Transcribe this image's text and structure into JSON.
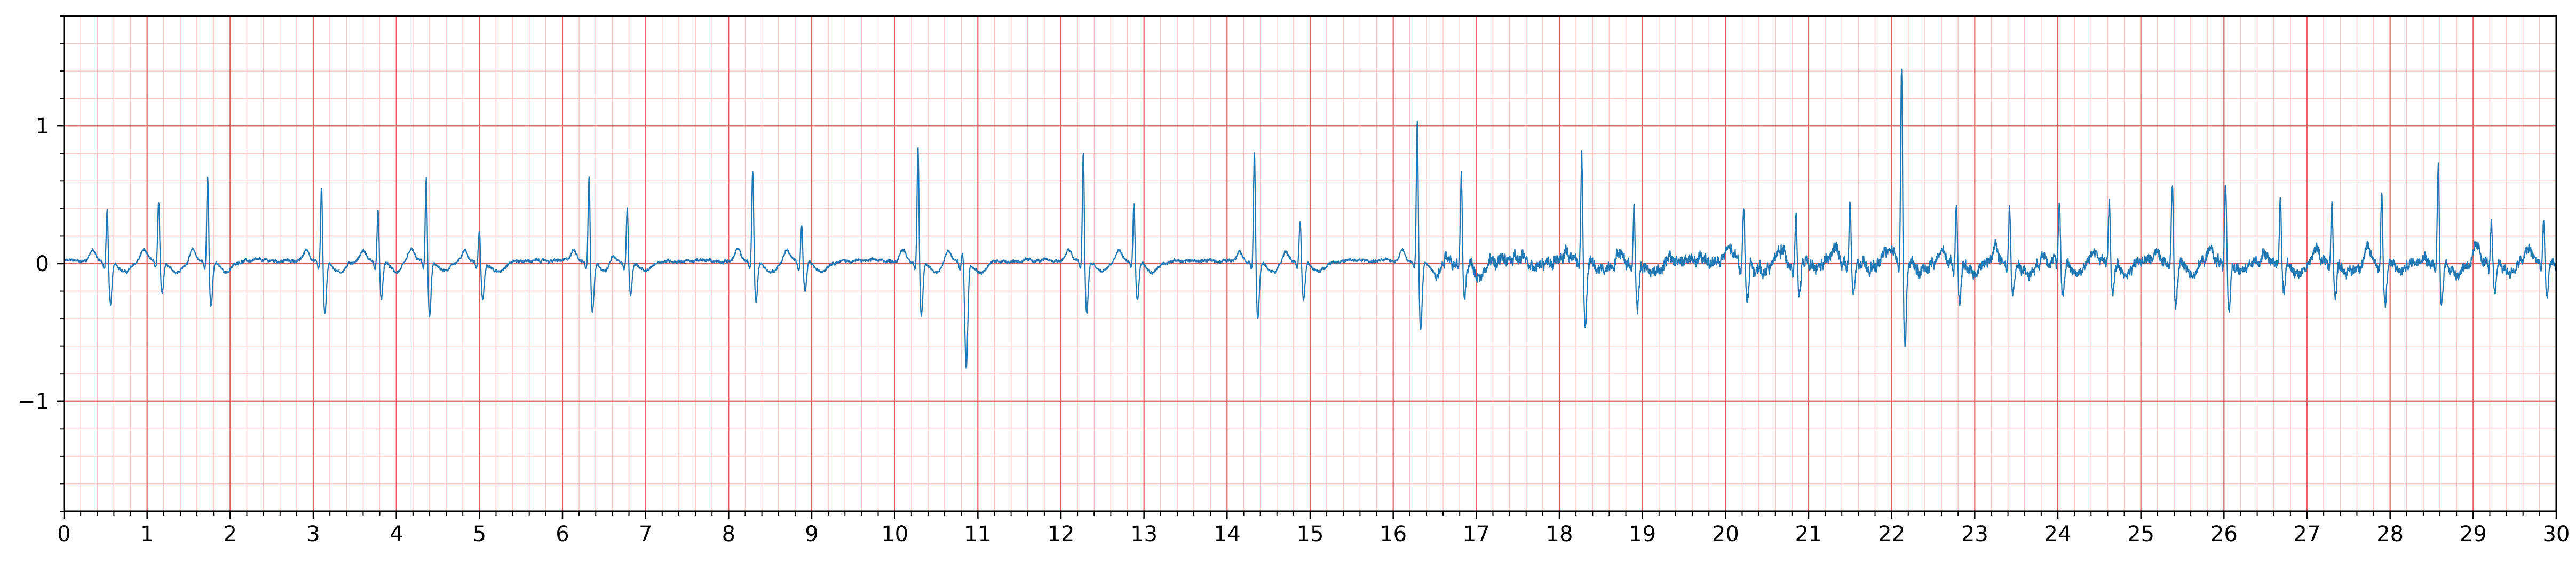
{
  "chart_data": {
    "type": "line",
    "title": "",
    "xlabel": "",
    "ylabel": "",
    "xlim": [
      0,
      30
    ],
    "ylim": [
      -1.8,
      1.8
    ],
    "x_ticks": [
      0,
      1,
      2,
      3,
      4,
      5,
      6,
      7,
      8,
      9,
      10,
      11,
      12,
      13,
      14,
      15,
      16,
      17,
      18,
      19,
      20,
      21,
      22,
      23,
      24,
      25,
      26,
      27,
      28,
      29,
      30
    ],
    "x_tick_labels": [
      "0",
      "1",
      "2",
      "3",
      "4",
      "5",
      "6",
      "7",
      "8",
      "9",
      "10",
      "11",
      "12",
      "13",
      "14",
      "15",
      "16",
      "17",
      "18",
      "19",
      "20",
      "21",
      "22",
      "23",
      "24",
      "25",
      "26",
      "27",
      "28",
      "29",
      "30"
    ],
    "y_ticks": [
      -1,
      0,
      1
    ],
    "y_tick_labels": [
      "−1",
      "0",
      "1"
    ],
    "grid": {
      "major": true,
      "minor": true,
      "major_x_step": 1,
      "major_y_step": 1,
      "minor_x_step": 0.2,
      "minor_y_step": 0.2
    },
    "colors": {
      "line": "#1f77b4",
      "major_grid": "#e06060",
      "minor_grid": "#ffc4c4",
      "axes": "#000000"
    },
    "series": [
      {
        "beats": [
          {
            "t": 0.52,
            "r": 0.42,
            "s": -0.32
          },
          {
            "t": 1.14,
            "r": 0.46,
            "s": -0.24
          },
          {
            "t": 1.73,
            "r": 0.66,
            "s": -0.32
          },
          {
            "t": 3.1,
            "r": 0.58,
            "s": -0.38
          },
          {
            "t": 3.78,
            "r": 0.42,
            "s": -0.28
          },
          {
            "t": 4.36,
            "r": 0.65,
            "s": -0.4
          },
          {
            "t": 5.0,
            "r": 0.26,
            "s": -0.28
          },
          {
            "t": 6.32,
            "r": 0.66,
            "s": -0.36
          },
          {
            "t": 6.78,
            "r": 0.42,
            "s": -0.24
          },
          {
            "t": 8.29,
            "r": 0.7,
            "s": -0.3
          },
          {
            "t": 8.88,
            "r": 0.3,
            "s": -0.22
          },
          {
            "t": 10.28,
            "r": 0.86,
            "s": -0.4
          },
          {
            "t": 10.82,
            "r": 0.12,
            "s": -0.77
          },
          {
            "t": 12.27,
            "r": 0.84,
            "s": -0.38
          },
          {
            "t": 12.88,
            "r": 0.45,
            "s": -0.3
          },
          {
            "t": 14.33,
            "r": 0.85,
            "s": -0.42
          },
          {
            "t": 14.88,
            "r": 0.32,
            "s": -0.28
          },
          {
            "t": 16.29,
            "r": 1.07,
            "s": -0.5
          },
          {
            "t": 16.82,
            "r": 0.64,
            "s": -0.28
          },
          {
            "t": 18.27,
            "r": 0.86,
            "s": -0.46
          },
          {
            "t": 18.9,
            "r": 0.44,
            "s": -0.3
          },
          {
            "t": 20.22,
            "r": 0.45,
            "s": -0.28
          },
          {
            "t": 20.85,
            "r": 0.38,
            "s": -0.24
          },
          {
            "t": 21.5,
            "r": 0.45,
            "s": -0.28
          },
          {
            "t": 22.12,
            "r": 1.5,
            "s": -0.6
          },
          {
            "t": 22.78,
            "r": 0.5,
            "s": -0.28
          },
          {
            "t": 23.42,
            "r": 0.45,
            "s": -0.26
          },
          {
            "t": 24.02,
            "r": 0.45,
            "s": -0.24
          },
          {
            "t": 24.62,
            "r": 0.46,
            "s": -0.26
          },
          {
            "t": 25.38,
            "r": 0.6,
            "s": -0.34
          },
          {
            "t": 26.02,
            "r": 0.54,
            "s": -0.36
          },
          {
            "t": 26.68,
            "r": 0.46,
            "s": -0.24
          },
          {
            "t": 27.3,
            "r": 0.48,
            "s": -0.24
          },
          {
            "t": 27.9,
            "r": 0.55,
            "s": -0.3
          },
          {
            "t": 28.58,
            "r": 0.74,
            "s": -0.34
          },
          {
            "t": 29.22,
            "r": 0.3,
            "s": -0.28
          },
          {
            "t": 29.85,
            "r": 0.3,
            "s": -0.28
          }
        ],
        "noise_segments": [
          {
            "from": 0.0,
            "to": 16.5,
            "level": 0.01
          },
          {
            "from": 16.5,
            "to": 22.5,
            "level": 0.04
          },
          {
            "from": 22.5,
            "to": 30.0,
            "level": 0.035
          }
        ]
      }
    ]
  }
}
